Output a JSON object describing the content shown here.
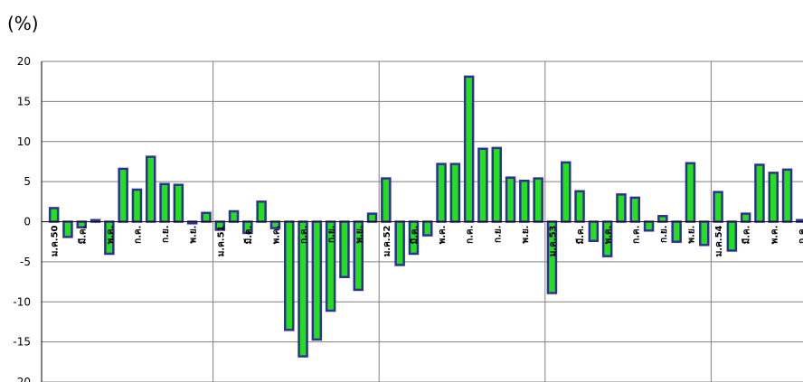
{
  "unit_label": "(%)",
  "chart_data": {
    "type": "bar",
    "title": "",
    "xlabel": "",
    "ylabel": "(%)",
    "ylim": [
      -20,
      20
    ],
    "yticks": [
      20,
      15,
      10,
      5,
      0,
      -5,
      -10,
      -15,
      -20
    ],
    "grid": true,
    "colors": {
      "fill": "#22e01e",
      "stroke": "#2e3192",
      "grid": "#808080",
      "axis": "#000000"
    },
    "values": [
      1.7,
      -1.9,
      -0.7,
      0.2,
      -4.0,
      6.6,
      4.0,
      8.1,
      4.7,
      4.6,
      -0.2,
      1.1,
      -1.0,
      1.3,
      -1.4,
      2.5,
      -0.8,
      -13.5,
      -16.8,
      -14.7,
      -11.1,
      -6.9,
      -8.5,
      1.0,
      5.4,
      -5.4,
      -4.0,
      -1.7,
      7.2,
      7.2,
      18.1,
      9.1,
      9.2,
      5.5,
      5.1,
      5.4,
      -8.9,
      7.4,
      3.8,
      -2.4,
      -4.3,
      3.4,
      3.0,
      -1.1,
      0.7,
      -2.5,
      7.3,
      -2.9,
      3.7,
      -3.6,
      1.0,
      7.1,
      6.1,
      6.5,
      0.2,
      7.3,
      6.9,
      4.5,
      -0.6,
      7.5,
      4.4,
      13.6,
      7.4,
      4.0,
      7.1,
      5.8
    ],
    "tick_labels": [
      {
        "i": 0,
        "text": "ม.ค.50"
      },
      {
        "i": 2,
        "text": "มี.ค."
      },
      {
        "i": 4,
        "text": "พ.ค."
      },
      {
        "i": 6,
        "text": "ก.ค."
      },
      {
        "i": 8,
        "text": "ก.ย."
      },
      {
        "i": 10,
        "text": "พ.ย."
      },
      {
        "i": 12,
        "text": "ม.ค.51"
      },
      {
        "i": 14,
        "text": "มี.ค."
      },
      {
        "i": 16,
        "text": "พ.ค."
      },
      {
        "i": 18,
        "text": "ก.ค."
      },
      {
        "i": 20,
        "text": "ก.ย."
      },
      {
        "i": 22,
        "text": "พ.ย."
      },
      {
        "i": 24,
        "text": "ม.ค.52"
      },
      {
        "i": 26,
        "text": "มี.ค."
      },
      {
        "i": 28,
        "text": "พ.ค."
      },
      {
        "i": 30,
        "text": "ก.ค."
      },
      {
        "i": 32,
        "text": "ก.ย."
      },
      {
        "i": 34,
        "text": "พ.ย."
      },
      {
        "i": 36,
        "text": "ม.ค.53"
      },
      {
        "i": 38,
        "text": "มี.ค."
      },
      {
        "i": 40,
        "text": "พ.ค."
      },
      {
        "i": 42,
        "text": "ก.ค."
      },
      {
        "i": 44,
        "text": "ก.ย."
      },
      {
        "i": 46,
        "text": "พ.ย."
      },
      {
        "i": 48,
        "text": "ม.ค.54"
      },
      {
        "i": 50,
        "text": "มี.ค."
      },
      {
        "i": 52,
        "text": "พ.ค."
      },
      {
        "i": 54,
        "text": "ก.ค."
      },
      {
        "i": 56,
        "text": "ก.ย."
      },
      {
        "i": 58,
        "text": "พ.ย."
      },
      {
        "i": 60,
        "text": "ม.ค.55"
      },
      {
        "i": 62,
        "text": "มี.ค."
      },
      {
        "i": 64,
        "text": "พ.ค."
      }
    ],
    "year_separators_after": [
      11,
      23,
      35,
      47,
      59
    ]
  }
}
